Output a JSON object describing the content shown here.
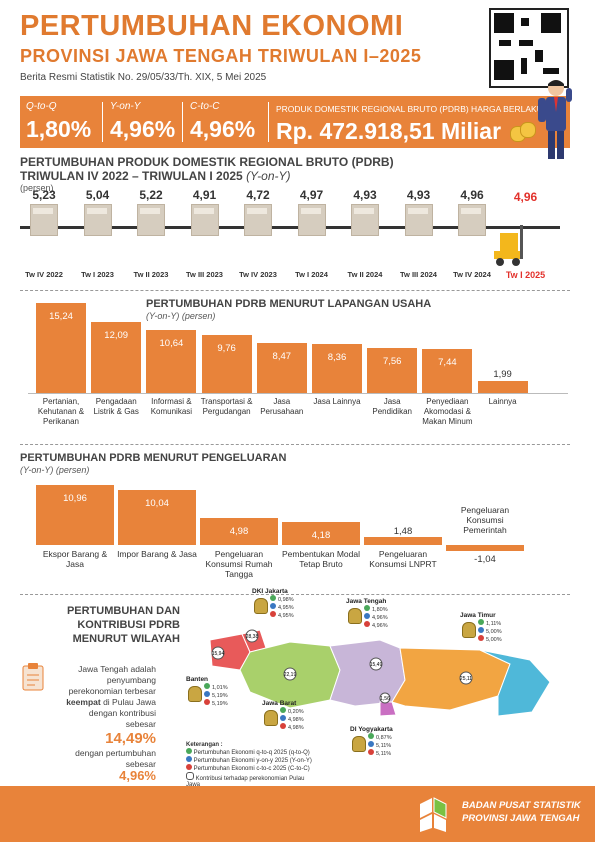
{
  "header": {
    "title_line1": "PERTUMBUHAN EKONOMI",
    "title_line2": "PROVINSI JAWA TENGAH TRIWULAN I–2025",
    "brs": "Berita Resmi Statistik No. 29/05/33/Th. XIX, 5 Mei 2025"
  },
  "kpis": [
    {
      "label": "Q-to-Q",
      "value": "1,80%"
    },
    {
      "label": "Y-on-Y",
      "value": "4,96%"
    },
    {
      "label": "C-to-C",
      "value": "4,96%"
    }
  ],
  "pdrb": {
    "label": "PRODUK DOMESTIK REGIONAL BRUTO (PDRB) HARGA BERLAKU",
    "value": "Rp. 472.918,51 Miliar"
  },
  "quarterly": {
    "title1": "PERTUMBUHAN PRODUK DOMESTIK REGIONAL BRUTO (PDRB)",
    "title2": "TRIWULAN IV 2022 – TRIWULAN I 2025",
    "title2_italic": "(Y-on-Y)",
    "unit": "(persen)",
    "items": [
      {
        "label": "Tw IV 2022",
        "value": "5,23"
      },
      {
        "label": "Tw I 2023",
        "value": "5,04"
      },
      {
        "label": "Tw II 2023",
        "value": "5,22"
      },
      {
        "label": "Tw III 2023",
        "value": "4,91"
      },
      {
        "label": "Tw IV 2023",
        "value": "4,72"
      },
      {
        "label": "Tw I 2024",
        "value": "4,97"
      },
      {
        "label": "Tw II 2024",
        "value": "4,93"
      },
      {
        "label": "Tw III 2024",
        "value": "4,93"
      },
      {
        "label": "Tw IV 2024",
        "value": "4,96"
      },
      {
        "label": "Tw I 2025",
        "value": "4,96"
      }
    ],
    "highlight_color": "#e2312b"
  },
  "chart_data": [
    {
      "type": "bar",
      "title": "PERTUMBUHAN PDRB MENURUT LAPANGAN USAHA",
      "subtitle": "(Y-on-Y) (persen)",
      "categories": [
        "Pertanian, Kehutanan & Perikanan",
        "Pengadaan Listrik & Gas",
        "Informasi & Komunikasi",
        "Transportasi & Pergudangan",
        "Jasa Perusahaan",
        "Jasa Lainnya",
        "Jasa Pendidikan",
        "Penyediaan Akomodasi & Makan Minum",
        "Lainnya"
      ],
      "labels": [
        "15,24",
        "12,09",
        "10,64",
        "9,76",
        "8,47",
        "8,36",
        "7,56",
        "7,44",
        "1,99"
      ],
      "values": [
        15.24,
        12.09,
        10.64,
        9.76,
        8.47,
        8.36,
        7.56,
        7.44,
        1.99
      ]
    },
    {
      "type": "bar",
      "title": "PERTUMBUHAN PDRB MENURUT PENGELUARAN",
      "subtitle": "(Y-on-Y) (persen)",
      "categories": [
        "Ekspor Barang & Jasa",
        "Impor Barang & Jasa",
        "Pengeluaran Konsumsi Rumah Tangga",
        "Pembentukan Modal Tetap Bruto",
        "Pengeluaran Konsumsi LNPRT",
        "Pengeluaran Konsumsi Pemerintah"
      ],
      "labels": [
        "10,96",
        "10,04",
        "4,98",
        "4,18",
        "1,48",
        "-1,04"
      ],
      "values": [
        10.96,
        10.04,
        4.98,
        4.18,
        1.48,
        -1.04
      ]
    }
  ],
  "region": {
    "title_lines": [
      "PERTUMBUHAN DAN",
      "KONTRIBUSI PDRB",
      "MENURUT WILAYAH"
    ],
    "desc1": "Jawa Tengah adalah",
    "desc2": "penyumbang",
    "desc3": "perekonomian terbesar",
    "desc4_bold": "keempat",
    "desc4_rest": " di Pulau Jawa",
    "desc5": "dengan kontribusi",
    "desc6": "sebesar",
    "share": "14,49%",
    "desc7": "dengan pertumbuhan",
    "desc8": "sebesar",
    "growth": "4,96%",
    "provinces": [
      {
        "name": "DKI Jakarta",
        "v": [
          "0,98%",
          "4,95%",
          "4,95%"
        ]
      },
      {
        "name": "Jawa Tengah",
        "v": [
          "1,80%",
          "4,96%",
          "4,96%"
        ]
      },
      {
        "name": "Jawa Timur",
        "v": [
          "1,11%",
          "5,00%",
          "5,00%"
        ]
      },
      {
        "name": "Banten",
        "v": [
          "1,01%",
          "5,19%",
          "5,19%"
        ]
      },
      {
        "name": "Jawa Barat",
        "v": [
          "0,20%",
          "4,98%",
          "4,98%"
        ]
      },
      {
        "name": "DI Yogyakarta",
        "v": [
          "0,87%",
          "5,11%",
          "5,11%"
        ]
      }
    ],
    "map_shares": [
      "15,94",
      "28,38",
      "22,19",
      "15,49",
      "1,56",
      "25,11"
    ],
    "legend_title": "Keterangan :",
    "legend": [
      "Pertumbuhan Ekonomi q-to-q 2025 (q-to-Q)",
      "Pertumbuhan Ekonomi y-on-y 2025 (Y-on-Y)",
      "Pertumbuhan Ekonomi c-to-c 2025 (C-to-C)",
      "Kontribusi terhadap perekonomian Pulau Jawa"
    ]
  },
  "footer": {
    "line1": "BADAN PUSAT STATISTIK",
    "line2": "PROVINSI JAWA TENGAH"
  },
  "colors": {
    "accent": "#e8833a",
    "red": "#e2312b"
  }
}
